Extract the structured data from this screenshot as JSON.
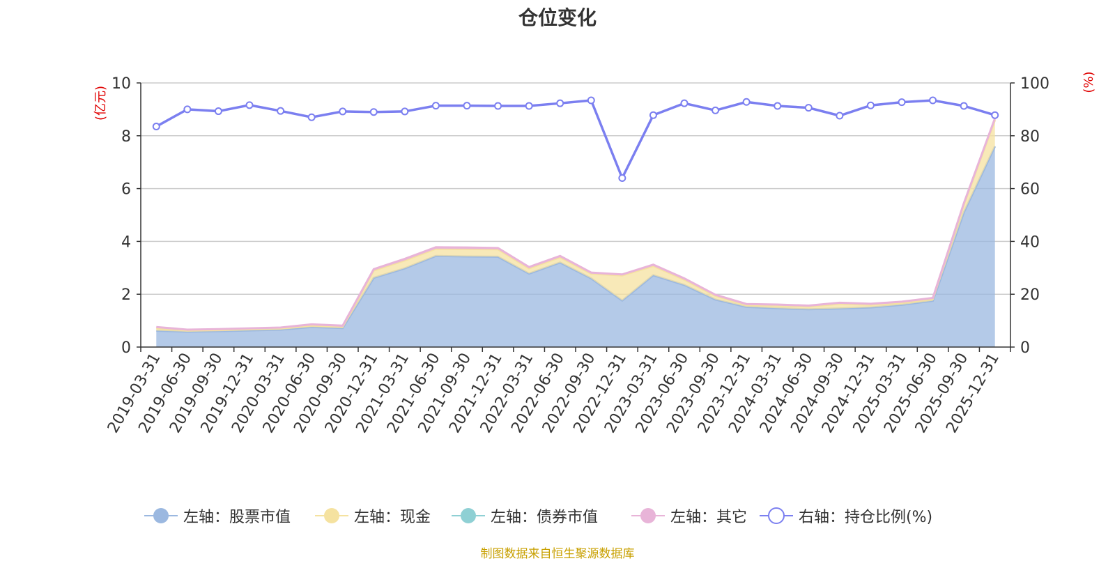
{
  "title": "仓位变化",
  "source": "制图数据来自恒生聚源数据库",
  "chart_data": {
    "type": "area",
    "title": "仓位变化",
    "x": [
      "2019-03-31",
      "2019-06-30",
      "2019-09-30",
      "2019-12-31",
      "2020-03-31",
      "2020-06-30",
      "2020-09-30",
      "2020-12-31",
      "2021-03-31",
      "2021-06-30",
      "2021-09-30",
      "2021-12-31",
      "2022-03-31",
      "2022-06-30",
      "2022-09-30",
      "2022-12-31",
      "2023-03-31",
      "2023-06-30",
      "2023-09-30",
      "2023-12-31",
      "2024-03-31",
      "2024-06-30",
      "2024-09-30",
      "2024-12-31",
      "2025-03-31",
      "2025-06-30",
      "2025-09-30",
      "2025-12-31"
    ],
    "left_axis": {
      "label": "(亿元)",
      "ylim": [
        0,
        10
      ],
      "ticks": [
        0,
        2,
        4,
        6,
        8,
        10
      ]
    },
    "right_axis": {
      "label": "(%)",
      "ylim": [
        0,
        100
      ],
      "ticks": [
        0,
        20,
        40,
        60,
        80,
        100
      ]
    },
    "stacked": true,
    "grid": true,
    "legend_position": "bottom",
    "series": [
      {
        "name": "左轴：股票市值",
        "axis": "left",
        "type": "area",
        "color": "#9bb8e0",
        "values": [
          0.62,
          0.58,
          0.6,
          0.63,
          0.66,
          0.76,
          0.72,
          2.62,
          2.98,
          3.45,
          3.43,
          3.42,
          2.78,
          3.2,
          2.6,
          1.76,
          2.72,
          2.35,
          1.8,
          1.52,
          1.47,
          1.43,
          1.46,
          1.5,
          1.6,
          1.75,
          5.1,
          7.6
        ]
      },
      {
        "name": "左轴：现金",
        "axis": "left",
        "type": "area",
        "color": "#f5e2a0",
        "values": [
          0.1,
          0.05,
          0.05,
          0.05,
          0.05,
          0.06,
          0.05,
          0.28,
          0.3,
          0.27,
          0.28,
          0.28,
          0.2,
          0.2,
          0.18,
          0.95,
          0.35,
          0.2,
          0.14,
          0.07,
          0.1,
          0.1,
          0.18,
          0.1,
          0.08,
          0.07,
          0.3,
          1.0
        ]
      },
      {
        "name": "左轴：债券市值",
        "axis": "left",
        "type": "area",
        "color": "#8fd0d4",
        "values": [
          0,
          0,
          0,
          0,
          0,
          0,
          0,
          0,
          0,
          0,
          0,
          0,
          0,
          0,
          0,
          0,
          0,
          0,
          0,
          0,
          0,
          0,
          0,
          0,
          0,
          0,
          0,
          0
        ]
      },
      {
        "name": "左轴：其它",
        "axis": "left",
        "type": "area",
        "color": "#e8b4d8",
        "values": [
          0.04,
          0.03,
          0.03,
          0.03,
          0.03,
          0.04,
          0.04,
          0.05,
          0.06,
          0.06,
          0.06,
          0.05,
          0.05,
          0.05,
          0.04,
          0.04,
          0.05,
          0.05,
          0.04,
          0.04,
          0.04,
          0.04,
          0.04,
          0.04,
          0.04,
          0.04,
          0.05,
          0.06
        ]
      },
      {
        "name": "右轴：持仓比例(%)",
        "axis": "right",
        "type": "line",
        "color": "#7b7ff0",
        "values": [
          83.5,
          90.0,
          89.3,
          91.6,
          89.4,
          87.0,
          89.2,
          89.0,
          89.2,
          91.4,
          91.4,
          91.3,
          91.3,
          92.3,
          93.4,
          64.0,
          87.8,
          92.3,
          89.6,
          92.8,
          91.3,
          90.6,
          87.6,
          91.5,
          92.7,
          93.4,
          91.3,
          87.8
        ]
      }
    ]
  }
}
